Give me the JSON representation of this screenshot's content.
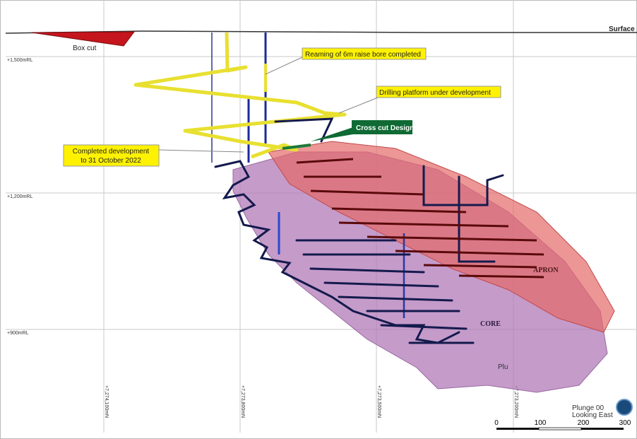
{
  "surface_label": "Surface",
  "box_cut_label": "Box cut",
  "elevation_labels": [
    "+1,500mRL",
    "+1,200mRL",
    "+900mRL"
  ],
  "northing_labels": [
    "+7,274,100mN",
    "+7,273,800mN",
    "+7,273,500mN",
    "+7,273,200mN"
  ],
  "callouts": {
    "reaming": "Reaming of 6m raise bore completed",
    "drilling_platform": "Drilling platform under development",
    "cross_cut": "Cross cut Design",
    "completed_development": [
      "Completed development",
      "to 31 October 2022"
    ]
  },
  "zones": {
    "apron": "APRON",
    "core": "CORE",
    "partial": "Plu"
  },
  "view": {
    "plunge": "Plunge 00",
    "looking": "Looking East"
  },
  "scale_bar": {
    "ticks": [
      0,
      100,
      200,
      300
    ]
  }
}
